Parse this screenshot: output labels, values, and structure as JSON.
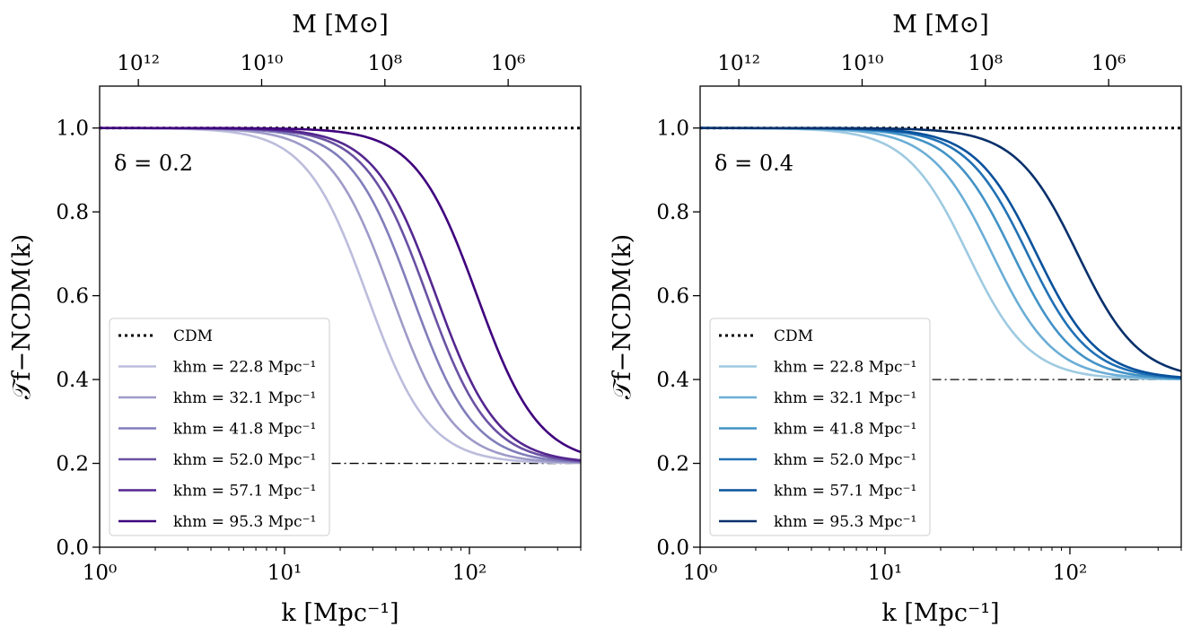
{
  "chart_data": [
    {
      "type": "line",
      "annotation": "δ = 0.2",
      "delta": 0.2,
      "xlabel": "k [Mpc⁻¹]",
      "ylabel": "𝒯f−NCDM(k)",
      "top_xlabel": "M [M⊙]",
      "xscale": "log",
      "xlim": [
        1,
        400
      ],
      "ylim": [
        0,
        1.1
      ],
      "x_ticks": [
        1,
        10,
        100
      ],
      "x_tick_labels": [
        "10⁰",
        "10¹",
        "10²"
      ],
      "y_ticks": [
        0,
        0.2,
        0.4,
        0.6,
        0.8,
        1.0
      ],
      "y_tick_labels": [
        "0.0",
        "0.2",
        "0.4",
        "0.6",
        "0.8",
        "1.0"
      ],
      "top_tick_labels": [
        "10¹²",
        "10¹⁰",
        "10⁸",
        "10⁶"
      ],
      "top_tick_k": [
        1.62,
        7.52,
        34.9,
        162
      ],
      "legend_position": "lower-left",
      "reference_lines": [
        {
          "name": "CDM",
          "style": "dotted",
          "y": 1.0
        },
        {
          "name": "",
          "style": "dashdot",
          "y": 0.2,
          "x_range": [
            18,
            400
          ]
        }
      ],
      "series": [
        {
          "name": "khm = 22.8 Mpc⁻¹",
          "k_half": 28,
          "color": "#bcbddc"
        },
        {
          "name": "khm = 32.1 Mpc⁻¹",
          "k_half": 38,
          "color": "#9e9ac8"
        },
        {
          "name": "khm = 41.8 Mpc⁻¹",
          "k_half": 49,
          "color": "#807dba"
        },
        {
          "name": "khm = 52.0 Mpc⁻¹",
          "k_half": 59,
          "color": "#6a51a3"
        },
        {
          "name": "khm = 57.1 Mpc⁻¹",
          "k_half": 66,
          "color": "#54278f"
        },
        {
          "name": "khm = 95.3 Mpc⁻¹",
          "k_half": 110,
          "color": "#3f007d"
        }
      ]
    },
    {
      "type": "line",
      "annotation": "δ = 0.4",
      "delta": 0.4,
      "xlabel": "k [Mpc⁻¹]",
      "ylabel": "𝒯f−NCDM(k)",
      "top_xlabel": "M [M⊙]",
      "xscale": "log",
      "xlim": [
        1,
        400
      ],
      "ylim": [
        0,
        1.1
      ],
      "x_ticks": [
        1,
        10,
        100
      ],
      "x_tick_labels": [
        "10⁰",
        "10¹",
        "10²"
      ],
      "y_ticks": [
        0,
        0.2,
        0.4,
        0.6,
        0.8,
        1.0
      ],
      "y_tick_labels": [
        "0.0",
        "0.2",
        "0.4",
        "0.6",
        "0.8",
        "1.0"
      ],
      "top_tick_labels": [
        "10¹²",
        "10¹⁰",
        "10⁸",
        "10⁶"
      ],
      "top_tick_k": [
        1.62,
        7.52,
        34.9,
        162
      ],
      "legend_position": "lower-left",
      "reference_lines": [
        {
          "name": "CDM",
          "style": "dotted",
          "y": 1.0
        },
        {
          "name": "",
          "style": "dashdot",
          "y": 0.4,
          "x_range": [
            18,
            400
          ]
        }
      ],
      "series": [
        {
          "name": "khm = 22.8 Mpc⁻¹",
          "k_half": 28,
          "color": "#9ecae1"
        },
        {
          "name": "khm = 32.1 Mpc⁻¹",
          "k_half": 38,
          "color": "#6baed6"
        },
        {
          "name": "khm = 41.8 Mpc⁻¹",
          "k_half": 49,
          "color": "#4292c6"
        },
        {
          "name": "khm = 52.0 Mpc⁻¹",
          "k_half": 59,
          "color": "#2171b5"
        },
        {
          "name": "khm = 57.1 Mpc⁻¹",
          "k_half": 66,
          "color": "#08519c"
        },
        {
          "name": "khm = 95.3 Mpc⁻¹",
          "k_half": 110,
          "color": "#08306b"
        }
      ]
    }
  ]
}
